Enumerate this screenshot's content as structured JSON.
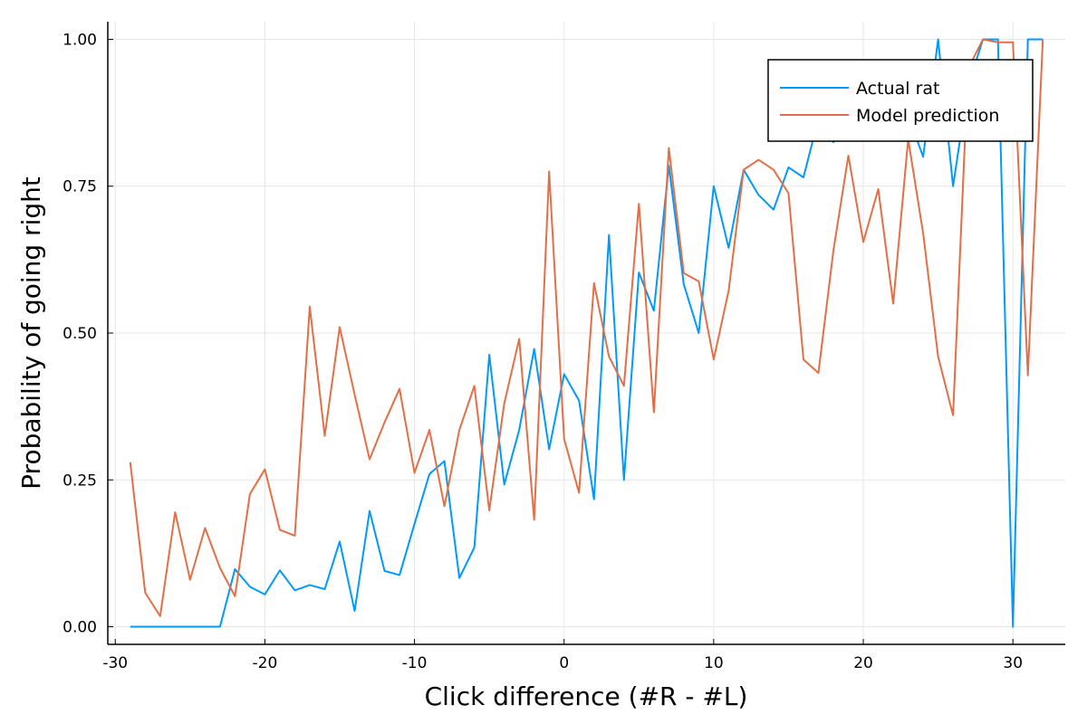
{
  "chart_data": {
    "type": "line",
    "xlabel": "Click difference (#R - #L)",
    "ylabel": "Probability of going right",
    "xlim": [
      -30.5,
      33.5
    ],
    "ylim": [
      -0.03,
      1.03
    ],
    "xticks": [
      -30,
      -20,
      -10,
      0,
      10,
      20,
      30
    ],
    "xtick_labels": [
      "-30",
      "-20",
      "-10",
      "0",
      "10",
      "20",
      "30"
    ],
    "yticks": [
      0,
      0.25,
      0.5,
      0.75,
      1.0
    ],
    "ytick_labels": [
      "0.00",
      "0.25",
      "0.50",
      "0.75",
      "1.00"
    ],
    "grid": true,
    "legend_position": "top-right",
    "x": [
      -29,
      -28,
      -27,
      -26,
      -25,
      -24,
      -23,
      -22,
      -21,
      -20,
      -19,
      -18,
      -17,
      -16,
      -15,
      -14,
      -13,
      -12,
      -11,
      -10,
      -9,
      -8,
      -7,
      -6,
      -5,
      -4,
      -3,
      -2,
      -1,
      0,
      1,
      2,
      3,
      4,
      5,
      6,
      7,
      8,
      9,
      10,
      11,
      12,
      13,
      14,
      15,
      16,
      17,
      18,
      19,
      20,
      21,
      22,
      23,
      24,
      25,
      26,
      27,
      28,
      29,
      30,
      31,
      32
    ],
    "series": [
      {
        "name": "Actual rat",
        "color": "#009AFA",
        "values": [
          0,
          0,
          0,
          0,
          0,
          0,
          0,
          0.098,
          0.068,
          0.055,
          0.096,
          0.062,
          0.071,
          0.064,
          0.145,
          0.027,
          0.197,
          0.095,
          0.088,
          0.175,
          0.26,
          0.282,
          0.083,
          0.135,
          0.463,
          0.242,
          0.335,
          0.473,
          0.302,
          0.43,
          0.385,
          0.217,
          0.667,
          0.25,
          0.603,
          0.538,
          0.785,
          0.583,
          0.5,
          0.75,
          0.645,
          0.778,
          0.735,
          0.71,
          0.782,
          0.765,
          0.865,
          0.825,
          0.85,
          0.86,
          0.855,
          0.84,
          0.87,
          0.8,
          1.0,
          0.75,
          0.92,
          1.0,
          1.0,
          0.0,
          1.0,
          1.0
        ]
      },
      {
        "name": "Model prediction",
        "color": "#E26F46",
        "values": [
          0.28,
          0.058,
          0.018,
          0.195,
          0.08,
          0.168,
          0.1,
          0.052,
          0.226,
          0.268,
          0.165,
          0.155,
          0.545,
          0.325,
          0.51,
          0.395,
          0.285,
          0.348,
          0.405,
          0.262,
          0.335,
          0.205,
          0.335,
          0.41,
          0.198,
          0.38,
          0.49,
          0.182,
          0.775,
          0.32,
          0.228,
          0.585,
          0.46,
          0.41,
          0.72,
          0.365,
          0.815,
          0.602,
          0.588,
          0.455,
          0.572,
          0.778,
          0.795,
          0.778,
          0.738,
          0.455,
          0.432,
          0.64,
          0.802,
          0.655,
          0.745,
          0.55,
          0.83,
          0.67,
          0.46,
          0.36,
          0.95,
          1.0,
          0.995,
          0.995,
          0.428,
          1.0
        ]
      }
    ]
  }
}
